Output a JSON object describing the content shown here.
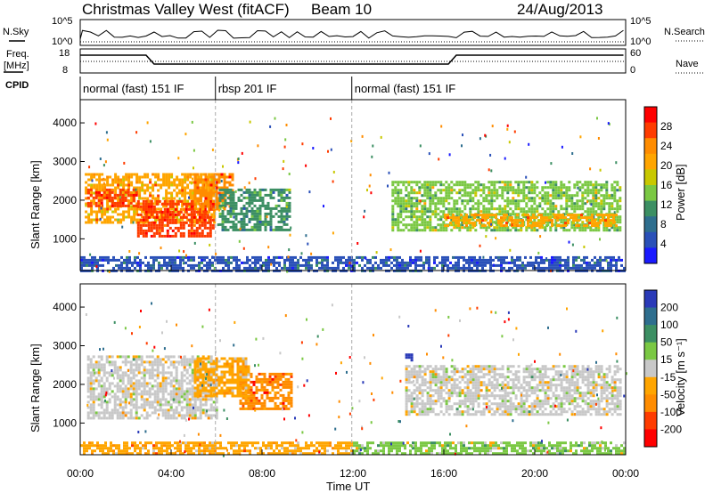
{
  "header": {
    "title": "Christmas Valley West (fitACF)",
    "beam": "Beam 10",
    "date": "24/Aug/2013"
  },
  "strip_labels": {
    "nsky": "N.Sky",
    "freq_line1": "Freq.",
    "freq_line2": "[MHz]",
    "cpid": "CPID",
    "nsearch": "N.Search",
    "nave": "Nave",
    "noise_top_left": "10^5",
    "noise_bottom_left": "10^0",
    "noise_top_right": "10^5",
    "noise_bottom_right": "10^0",
    "freq_top": "18",
    "freq_bottom": "8",
    "nave_top": "60",
    "nave_bottom": "0"
  },
  "modes": [
    {
      "label": "normal (fast) 151 IF",
      "start_hour": 0.0,
      "end_hour": 5.95
    },
    {
      "label": "rbsp 201 IF",
      "start_hour": 5.95,
      "end_hour": 11.95
    },
    {
      "label": "normal (fast) 151 IF",
      "start_hour": 11.95,
      "end_hour": 24.0
    }
  ],
  "axes": {
    "x_label": "Time UT",
    "x_ticks": [
      "00:00",
      "04:00",
      "08:00",
      "12:00",
      "16:00",
      "20:00",
      "00:00"
    ],
    "y_label": "Slant Range [km]",
    "y_ticks": [
      "1000",
      "2000",
      "3000",
      "4000"
    ]
  },
  "colorbars": {
    "power": {
      "label": "Power [dB]",
      "ticks": [
        "28",
        "24",
        "20",
        "16",
        "12",
        "8",
        "4"
      ],
      "colors": [
        "#ff0000",
        "#ff3c00",
        "#ff8c00",
        "#ffa500",
        "#c8c800",
        "#7ac843",
        "#3c8f63",
        "#2e6e8e",
        "#2a50b8",
        "#1a1aff"
      ]
    },
    "velocity": {
      "label": "Velocity [m s⁻¹]",
      "ticks": [
        "200",
        "100",
        "50",
        "15",
        "-15",
        "-50",
        "-100",
        "-200"
      ],
      "colors": [
        "#2a3ab8",
        "#2e6e8e",
        "#3c8f63",
        "#7ac843",
        "#c8c8c8",
        "#ffa500",
        "#ff8c00",
        "#ff3c00",
        "#ff0000"
      ]
    }
  },
  "chart_data": {
    "type": "heatmap",
    "x_range_hours": [
      0,
      24
    ],
    "y_range_km": [
      180,
      4600
    ],
    "panels": [
      {
        "name": "power",
        "units": "dB",
        "clim": [
          0,
          30
        ],
        "regions": [
          {
            "t0": 0.2,
            "t1": 5.95,
            "r0": 1400,
            "r1": 2700,
            "value": 20
          },
          {
            "t0": 0.3,
            "t1": 2.5,
            "r0": 1850,
            "r1": 2300,
            "value": 26
          },
          {
            "t0": 2.5,
            "t1": 5.8,
            "r0": 1100,
            "r1": 2000,
            "value": 27
          },
          {
            "t0": 5.0,
            "t1": 6.7,
            "r0": 1800,
            "r1": 2700,
            "value": 24
          },
          {
            "t0": 6.1,
            "t1": 9.2,
            "r0": 1200,
            "r1": 2300,
            "value": 10
          },
          {
            "t0": 13.7,
            "t1": 23.8,
            "r0": 1200,
            "r1": 2500,
            "value": 14
          },
          {
            "t0": 16.0,
            "t1": 23.6,
            "r0": 1350,
            "r1": 1650,
            "value": 20
          },
          {
            "t0": 0.0,
            "t1": 24.0,
            "r0": 200,
            "r1": 550,
            "value": 6
          }
        ]
      },
      {
        "name": "velocity",
        "units": "m s-1",
        "clim": [
          -200,
          200
        ],
        "regions": [
          {
            "t0": 0.3,
            "t1": 5.95,
            "r0": 1150,
            "r1": 2750,
            "value": 0
          },
          {
            "t0": 7.0,
            "t1": 9.3,
            "r0": 1350,
            "r1": 2300,
            "value": -100
          },
          {
            "t0": 5.0,
            "t1": 7.4,
            "r0": 1700,
            "r1": 2700,
            "value": -40
          },
          {
            "t0": 14.3,
            "t1": 23.8,
            "r0": 1200,
            "r1": 2500,
            "value": 0
          },
          {
            "t0": 14.3,
            "t1": 14.6,
            "r0": 2600,
            "r1": 2800,
            "value": 200
          },
          {
            "t0": 0.0,
            "t1": 12.0,
            "r0": 200,
            "r1": 520,
            "value": -50
          },
          {
            "t0": 12.0,
            "t1": 24.0,
            "r0": 200,
            "r1": 520,
            "value": 30
          }
        ]
      }
    ]
  }
}
